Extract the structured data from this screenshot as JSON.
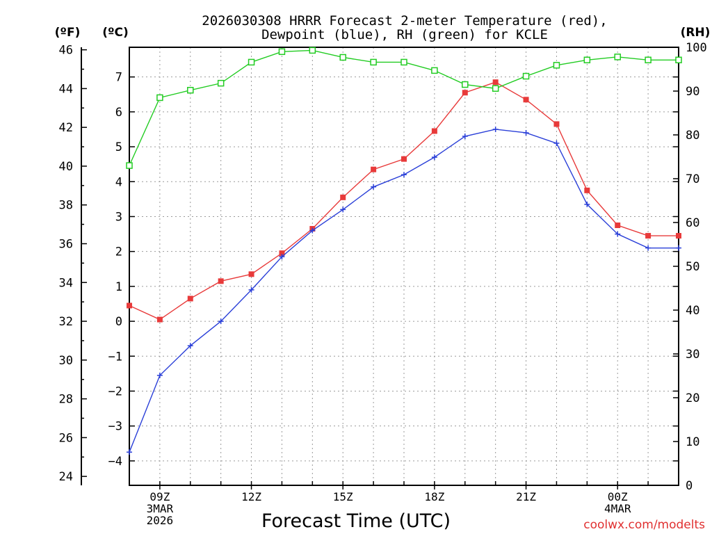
{
  "chart_data": {
    "type": "line",
    "title_line1": "2026030308 HRRR Forecast 2-meter Temperature (red),",
    "title_line2": "Dewpoint (blue), RH (green) for KCLE",
    "xlabel": "Forecast Time (UTC)",
    "credit": "coolwx.com/modelts",
    "units": {
      "fahrenheit": "(ºF)",
      "celsius": "(ºC)",
      "rh": "(RH)"
    },
    "x": [
      8,
      9,
      10,
      11,
      12,
      13,
      14,
      15,
      16,
      17,
      18,
      19,
      20,
      21,
      22,
      23,
      24,
      25,
      26
    ],
    "x_range": [
      8,
      26
    ],
    "x_ticks": [
      {
        "x": 9,
        "lines": [
          "09Z",
          "3MAR",
          "2026"
        ]
      },
      {
        "x": 12,
        "lines": [
          "12Z"
        ]
      },
      {
        "x": 15,
        "lines": [
          "15Z"
        ]
      },
      {
        "x": 18,
        "lines": [
          "18Z"
        ]
      },
      {
        "x": 21,
        "lines": [
          "21Z"
        ]
      },
      {
        "x": 24,
        "lines": [
          "00Z",
          "4MAR"
        ]
      }
    ],
    "y_celsius": {
      "range": [
        -4.7,
        7.85
      ],
      "ticks": [
        -4,
        -3,
        -2,
        -1,
        0,
        1,
        2,
        3,
        4,
        5,
        6,
        7
      ]
    },
    "y_fahrenheit": {
      "ticks": [
        24,
        26,
        28,
        30,
        32,
        34,
        36,
        38,
        40,
        42,
        44,
        46
      ]
    },
    "y_rh": {
      "range": [
        0,
        100
      ],
      "ticks": [
        0,
        10,
        20,
        30,
        40,
        50,
        60,
        70,
        80,
        90,
        100
      ]
    },
    "series": [
      {
        "name": "Temperature",
        "axis": "celsius",
        "color": "#e83a3a",
        "marker": "filled-square",
        "values": [
          0.45,
          0.05,
          0.65,
          1.15,
          1.35,
          1.95,
          2.65,
          3.55,
          4.35,
          4.65,
          5.45,
          6.55,
          6.85,
          6.35,
          5.65,
          3.75,
          2.75,
          2.45,
          2.45
        ]
      },
      {
        "name": "Dewpoint",
        "axis": "celsius",
        "color": "#2a3fd8",
        "marker": "plus",
        "values": [
          -3.75,
          -1.55,
          -0.7,
          0.0,
          0.9,
          1.85,
          2.6,
          3.2,
          3.85,
          4.2,
          4.7,
          5.3,
          5.5,
          5.4,
          5.1,
          3.35,
          2.5,
          2.1,
          2.1
        ]
      },
      {
        "name": "RH",
        "axis": "rh",
        "color": "#22cc22",
        "marker": "open-square",
        "values": [
          73,
          88.5,
          90.2,
          91.8,
          96.6,
          99,
          99.3,
          97.7,
          96.6,
          96.6,
          94.7,
          91.5,
          90.6,
          93.4,
          95.9,
          97.1,
          97.8,
          97.1,
          97.1
        ]
      }
    ]
  }
}
